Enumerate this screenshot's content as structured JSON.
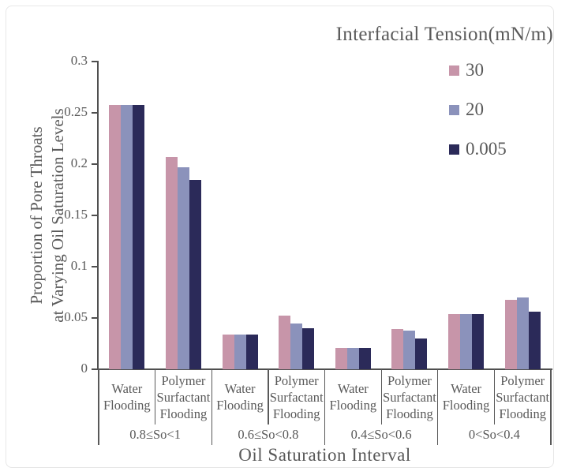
{
  "figure": {
    "legend": {
      "title": "Interfacial Tension(mN/m)",
      "entries": [
        {
          "label": "30",
          "color": "#c795a9"
        },
        {
          "label": "20",
          "color": "#8b92bb"
        },
        {
          "label": "0.005",
          "color": "#2b2a59"
        }
      ]
    }
  },
  "chart_data": {
    "type": "bar",
    "title": "",
    "xlabel": "Oil Saturation Interval",
    "ylabel": "Proportion of Pore Throats at Varying Oil Saturation Levels",
    "ylabel_lines": [
      "Proportion of Pore Throats",
      "at Varying Oil Saturation Levels"
    ],
    "ylim": [
      0,
      0.3
    ],
    "yticks": [
      "0",
      "0.05",
      "0.1",
      "0.15",
      "0.2",
      "0.25",
      "0.3"
    ],
    "grid": false,
    "legend_position": "top-right",
    "series_names": [
      "30",
      "20",
      "0.005"
    ],
    "series_colors": [
      "#c795a9",
      "#8b92bb",
      "#2b2a59"
    ],
    "intervals": [
      {
        "label": "0.8≤So<1",
        "subgroups": [
          {
            "label": "Water Flooding",
            "label_lines": [
              "Water",
              "Flooding"
            ],
            "values": [
              0.258,
              0.258,
              0.258
            ]
          },
          {
            "label": "Polymer Surfactant Flooding",
            "label_lines": [
              "Polymer",
              "Surfactant",
              "Flooding"
            ],
            "values": [
              0.207,
              0.197,
              0.185
            ]
          }
        ]
      },
      {
        "label": "0.6≤So<0.8",
        "subgroups": [
          {
            "label": "Water Flooding",
            "label_lines": [
              "Water",
              "Flooding"
            ],
            "values": [
              0.034,
              0.034,
              0.034
            ]
          },
          {
            "label": "Polymer Surfactant Flooding",
            "label_lines": [
              "Polymer",
              "Surfactant",
              "Flooding"
            ],
            "values": [
              0.052,
              0.045,
              0.04
            ]
          }
        ]
      },
      {
        "label": "0.4≤So<0.6",
        "subgroups": [
          {
            "label": "Water Flooding",
            "label_lines": [
              "Water",
              "Flooding"
            ],
            "values": [
              0.021,
              0.021,
              0.021
            ]
          },
          {
            "label": "Polymer Surfactant Flooding",
            "label_lines": [
              "Polymer",
              "Surfactant",
              "Flooding"
            ],
            "values": [
              0.039,
              0.038,
              0.03
            ]
          }
        ]
      },
      {
        "label": "0<So<0.4",
        "subgroups": [
          {
            "label": "Water Flooding",
            "label_lines": [
              "Water",
              "Flooding"
            ],
            "values": [
              0.054,
              0.054,
              0.054
            ]
          },
          {
            "label": "Polymer Surfactant Flooding",
            "label_lines": [
              "Polymer",
              "Surfactant",
              "Flooding"
            ],
            "values": [
              0.068,
              0.07,
              0.056
            ]
          }
        ]
      }
    ]
  }
}
